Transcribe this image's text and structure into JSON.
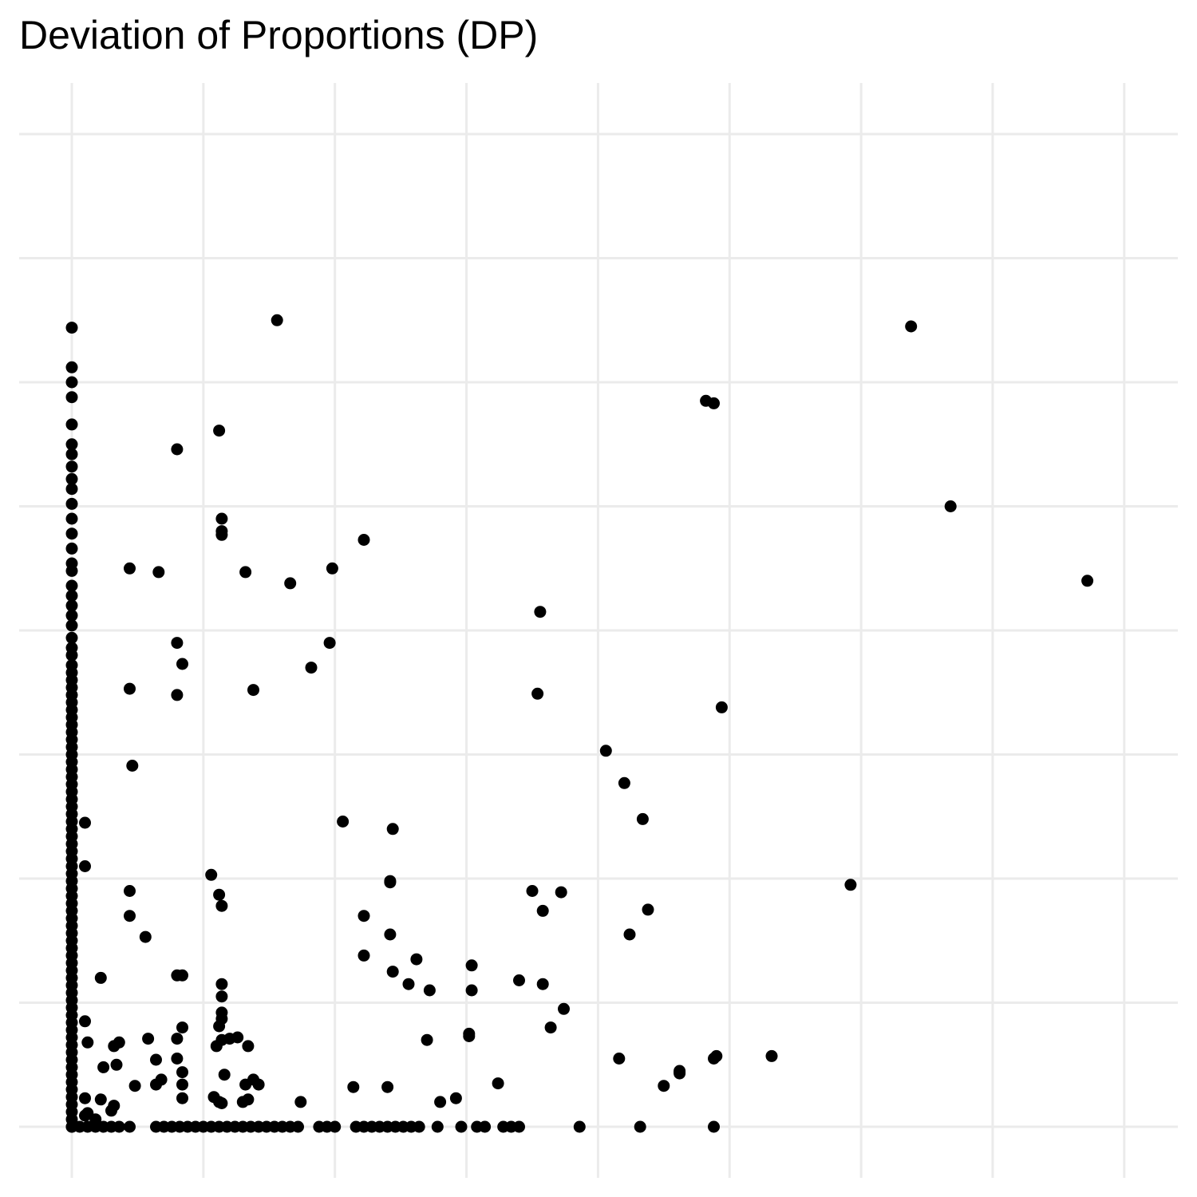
{
  "chart_data": {
    "type": "scatter",
    "title": "Deviation of Proportions (DP)",
    "xlabel": "",
    "ylabel": "",
    "xlim": [
      -0.2,
      4.0
    ],
    "ylim": [
      -0.4,
      8.0
    ],
    "x_gridlines": [
      0,
      0.5,
      1,
      1.5,
      2,
      2.5,
      3,
      3.5,
      4
    ],
    "y_gridlines": [
      0,
      1,
      2,
      3,
      4,
      5,
      6,
      7,
      8
    ],
    "grid": true,
    "legend": "none",
    "point_color": "#000000",
    "grid_color": "#ebebeb",
    "series": [
      {
        "points": [
          [
            0,
            6.44
          ],
          [
            0,
            6.12
          ],
          [
            0,
            6.0
          ],
          [
            0,
            5.88
          ],
          [
            0,
            5.66
          ],
          [
            0,
            5.5
          ],
          [
            0,
            5.42
          ],
          [
            0,
            5.32
          ],
          [
            0,
            5.22
          ],
          [
            0,
            5.14
          ],
          [
            0,
            5.02
          ],
          [
            0,
            4.9
          ],
          [
            0,
            4.78
          ],
          [
            0,
            4.66
          ],
          [
            0,
            4.54
          ],
          [
            0,
            4.48
          ],
          [
            0,
            4.36
          ],
          [
            0,
            4.28
          ],
          [
            0,
            4.2
          ],
          [
            0,
            4.12
          ],
          [
            0,
            4.04
          ],
          [
            0,
            3.94
          ],
          [
            0,
            3.86
          ],
          [
            0,
            3.8
          ],
          [
            0,
            3.72
          ],
          [
            0,
            3.66
          ],
          [
            0,
            3.6
          ],
          [
            0,
            3.54
          ],
          [
            0,
            3.48
          ],
          [
            0,
            3.42
          ],
          [
            0,
            3.36
          ],
          [
            0,
            3.3
          ],
          [
            0,
            3.24
          ],
          [
            0,
            3.18
          ],
          [
            0,
            3.12
          ],
          [
            0,
            3.06
          ],
          [
            0,
            3.0
          ],
          [
            0,
            2.94
          ],
          [
            0,
            2.88
          ],
          [
            0,
            2.82
          ],
          [
            0,
            2.76
          ],
          [
            0,
            2.7
          ],
          [
            0,
            2.64
          ],
          [
            0,
            2.58
          ],
          [
            0,
            2.52
          ],
          [
            0,
            2.46
          ],
          [
            0,
            2.4
          ],
          [
            0,
            2.34
          ],
          [
            0,
            2.28
          ],
          [
            0,
            2.22
          ],
          [
            0,
            2.16
          ],
          [
            0,
            2.1
          ],
          [
            0,
            2.04
          ],
          [
            0,
            1.98
          ],
          [
            0,
            1.92
          ],
          [
            0,
            1.86
          ],
          [
            0,
            1.8
          ],
          [
            0,
            1.74
          ],
          [
            0,
            1.68
          ],
          [
            0,
            1.62
          ],
          [
            0,
            1.56
          ],
          [
            0,
            1.5
          ],
          [
            0,
            1.44
          ],
          [
            0,
            1.38
          ],
          [
            0,
            1.32
          ],
          [
            0,
            1.26
          ],
          [
            0,
            1.2
          ],
          [
            0,
            1.14
          ],
          [
            0,
            1.08
          ],
          [
            0,
            1.02
          ],
          [
            0,
            0.96
          ],
          [
            0,
            0.9
          ],
          [
            0,
            0.84
          ],
          [
            0,
            0.78
          ],
          [
            0,
            0.72
          ],
          [
            0,
            0.66
          ],
          [
            0,
            0.6
          ],
          [
            0,
            0.54
          ],
          [
            0,
            0.48
          ],
          [
            0,
            0.42
          ],
          [
            0,
            0.36
          ],
          [
            0,
            0.3
          ],
          [
            0,
            0.24
          ],
          [
            0,
            0.18
          ],
          [
            0,
            0.12
          ],
          [
            0,
            0.06
          ],
          [
            0,
            0.0
          ],
          [
            0.78,
            6.5
          ],
          [
            3.19,
            6.45
          ],
          [
            2.41,
            5.85
          ],
          [
            2.44,
            5.83
          ],
          [
            0.56,
            5.61
          ],
          [
            0.4,
            5.46
          ],
          [
            0.57,
            4.9
          ],
          [
            0.57,
            4.8
          ],
          [
            0.57,
            4.77
          ],
          [
            1.11,
            4.73
          ],
          [
            3.34,
            5.0
          ],
          [
            0.22,
            4.5
          ],
          [
            0.33,
            4.47
          ],
          [
            0.66,
            4.47
          ],
          [
            0.83,
            4.38
          ],
          [
            0.99,
            4.5
          ],
          [
            3.86,
            4.4
          ],
          [
            1.78,
            4.15
          ],
          [
            0.4,
            3.9
          ],
          [
            0.42,
            3.73
          ],
          [
            0.4,
            3.48
          ],
          [
            0.22,
            3.53
          ],
          [
            0.69,
            3.52
          ],
          [
            0.98,
            3.9
          ],
          [
            0.91,
            3.7
          ],
          [
            1.77,
            3.49
          ],
          [
            2.47,
            3.38
          ],
          [
            2.03,
            3.03
          ],
          [
            2.1,
            2.77
          ],
          [
            0.23,
            2.91
          ],
          [
            0.05,
            2.45
          ],
          [
            1.03,
            2.46
          ],
          [
            1.22,
            2.4
          ],
          [
            2.17,
            2.48
          ],
          [
            0.05,
            2.1
          ],
          [
            0.53,
            2.03
          ],
          [
            0.56,
            1.87
          ],
          [
            0.57,
            1.78
          ],
          [
            0.22,
            1.9
          ],
          [
            0.22,
            1.7
          ],
          [
            0.28,
            1.53
          ],
          [
            1.21,
            1.97
          ],
          [
            1.21,
            1.98
          ],
          [
            1.11,
            1.7
          ],
          [
            1.21,
            1.55
          ],
          [
            1.11,
            1.38
          ],
          [
            1.75,
            1.9
          ],
          [
            1.86,
            1.89
          ],
          [
            1.79,
            1.74
          ],
          [
            2.12,
            1.55
          ],
          [
            2.19,
            1.75
          ],
          [
            2.96,
            1.95
          ],
          [
            0.11,
            1.2
          ],
          [
            0.42,
            1.22
          ],
          [
            0.57,
            1.15
          ],
          [
            0.57,
            1.05
          ],
          [
            0.57,
            0.92
          ],
          [
            0.57,
            0.87
          ],
          [
            0.56,
            0.81
          ],
          [
            0.4,
            1.22
          ],
          [
            0.42,
            0.8
          ],
          [
            0.4,
            0.71
          ],
          [
            0.4,
            0.55
          ],
          [
            0.67,
            0.65
          ],
          [
            0.69,
            0.38
          ],
          [
            0.55,
            0.65
          ],
          [
            0.12,
            0.48
          ],
          [
            0.16,
            0.65
          ],
          [
            0.29,
            0.71
          ],
          [
            0.32,
            0.54
          ],
          [
            0.58,
            0.42
          ],
          [
            0.57,
            0.7
          ],
          [
            0.6,
            0.71
          ],
          [
            0.63,
            0.72
          ],
          [
            1.22,
            1.25
          ],
          [
            1.28,
            1.15
          ],
          [
            1.31,
            1.35
          ],
          [
            1.36,
            1.1
          ],
          [
            1.35,
            0.7
          ],
          [
            1.52,
            1.3
          ],
          [
            1.52,
            1.1
          ],
          [
            1.7,
            1.18
          ],
          [
            1.79,
            1.15
          ],
          [
            1.82,
            0.8
          ],
          [
            1.51,
            0.75
          ],
          [
            1.51,
            0.73
          ],
          [
            1.62,
            0.35
          ],
          [
            2.08,
            0.55
          ],
          [
            2.25,
            0.33
          ],
          [
            2.44,
            0.55
          ],
          [
            2.45,
            0.57
          ],
          [
            2.66,
            0.57
          ],
          [
            2.31,
            0.45
          ],
          [
            1.87,
            0.95
          ],
          [
            0.05,
            0.85
          ],
          [
            0.06,
            0.68
          ],
          [
            0.18,
            0.68
          ],
          [
            0.17,
            0.5
          ],
          [
            0.05,
            0.23
          ],
          [
            0.11,
            0.22
          ],
          [
            0.16,
            0.17
          ],
          [
            0.15,
            0.13
          ],
          [
            0.24,
            0.33
          ],
          [
            0.32,
            0.34
          ],
          [
            0.34,
            0.38
          ],
          [
            0.42,
            0.23
          ],
          [
            0.42,
            0.34
          ],
          [
            0.42,
            0.44
          ],
          [
            0.54,
            0.24
          ],
          [
            0.56,
            0.2
          ],
          [
            0.57,
            0.19
          ],
          [
            0.66,
            0.34
          ],
          [
            0.65,
            0.2
          ],
          [
            0.67,
            0.22
          ],
          [
            0.71,
            0.34
          ],
          [
            0.87,
            0.2
          ],
          [
            1.07,
            0.32
          ],
          [
            1.2,
            0.32
          ],
          [
            1.4,
            0.2
          ],
          [
            2.31,
            0.43
          ],
          [
            0.06,
            0.11
          ],
          [
            0.09,
            0.06
          ],
          [
            0.05,
            0.09
          ],
          [
            1.46,
            0.23
          ],
          [
            2.31,
            0.44
          ],
          [
            0,
            0
          ],
          [
            0.03,
            0
          ],
          [
            0.06,
            0
          ],
          [
            0.09,
            0
          ],
          [
            0.12,
            0
          ],
          [
            0.15,
            0
          ],
          [
            0.18,
            0
          ],
          [
            0.22,
            0
          ],
          [
            0.32,
            0
          ],
          [
            0.35,
            0
          ],
          [
            0.38,
            0
          ],
          [
            0.41,
            0
          ],
          [
            0.44,
            0
          ],
          [
            0.47,
            0
          ],
          [
            0.5,
            0
          ],
          [
            0.53,
            0
          ],
          [
            0.56,
            0
          ],
          [
            0.59,
            0
          ],
          [
            0.62,
            0
          ],
          [
            0.65,
            0
          ],
          [
            0.68,
            0
          ],
          [
            0.71,
            0
          ],
          [
            0.74,
            0
          ],
          [
            0.77,
            0
          ],
          [
            0.8,
            0
          ],
          [
            0.83,
            0
          ],
          [
            0.86,
            0
          ],
          [
            0.94,
            0
          ],
          [
            0.97,
            0
          ],
          [
            1.0,
            0
          ],
          [
            1.08,
            0
          ],
          [
            1.11,
            0
          ],
          [
            1.14,
            0
          ],
          [
            1.17,
            0
          ],
          [
            1.2,
            0
          ],
          [
            1.23,
            0
          ],
          [
            1.26,
            0
          ],
          [
            1.29,
            0
          ],
          [
            1.32,
            0
          ],
          [
            1.39,
            0
          ],
          [
            1.48,
            0
          ],
          [
            1.54,
            0
          ],
          [
            1.57,
            0
          ],
          [
            1.64,
            0
          ],
          [
            1.67,
            0
          ],
          [
            1.7,
            0
          ],
          [
            1.93,
            0
          ],
          [
            2.16,
            0
          ],
          [
            2.44,
            0
          ]
        ]
      }
    ]
  }
}
